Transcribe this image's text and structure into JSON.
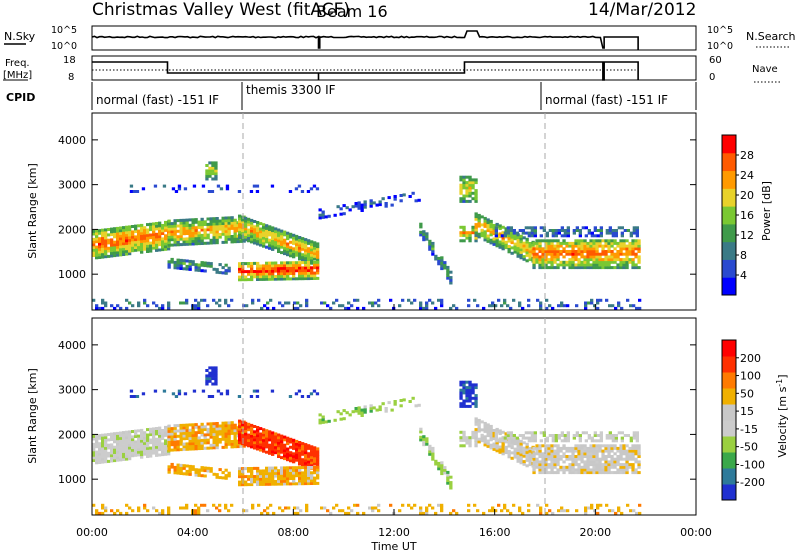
{
  "header": {
    "title": "Christmas Valley West (fitACF)",
    "beam": "Beam 16",
    "date": "14/Mar/2012"
  },
  "panels": {
    "nsky": {
      "label": "N.Sky",
      "ticks": [
        "10^5",
        "10^0"
      ],
      "right_label": "N.Search"
    },
    "freq": {
      "label_line1": "Freq.",
      "label_line2": "[MHz]",
      "ticks": [
        "18",
        "8"
      ],
      "right_ticks": [
        "60",
        "0"
      ],
      "right_label": "Nave"
    },
    "cpid": {
      "label": "CPID",
      "segments": [
        "normal (fast) -151 IF",
        "themis 3300 IF",
        "normal (fast) -151 IF"
      ]
    }
  },
  "colors": {
    "power": [
      "#0000ff",
      "#2a4ad0",
      "#3a7a86",
      "#3f9a4a",
      "#7ac832",
      "#e8d22a",
      "#ff9a00",
      "#ff5a00",
      "#ff0000"
    ],
    "velocity": [
      "#2030d0",
      "#2e7a9a",
      "#3aa84a",
      "#9ad040",
      "#cccccc",
      "#c8c8c8",
      "#f0b000",
      "#ff7a00",
      "#ff3000",
      "#ff0000"
    ]
  },
  "chart_data": [
    {
      "type": "heatmap",
      "name": "Power",
      "ylabel": "Slant Range [km]",
      "yticks": [
        "1000",
        "2000",
        "3000",
        "4000"
      ],
      "ylim": [
        200,
        4600
      ],
      "xlim": [
        0,
        24
      ],
      "colorbar_label": "Power [dB]",
      "colorbar_ticks": [
        "4",
        "8",
        "12",
        "16",
        "20",
        "24",
        "28"
      ],
      "colorbar_range": [
        0,
        32
      ]
    },
    {
      "type": "heatmap",
      "name": "Velocity",
      "ylabel": "Slant Range [km]",
      "yticks": [
        "1000",
        "2000",
        "3000",
        "4000"
      ],
      "ylim": [
        200,
        4600
      ],
      "xlim": [
        0,
        24
      ],
      "xlabel": "Time UT",
      "xticks": [
        "00:00",
        "04:00",
        "08:00",
        "12:00",
        "16:00",
        "20:00",
        "00:00"
      ],
      "colorbar_label": "Velocity [m s^-1]",
      "colorbar_ticks": [
        "200",
        "100",
        "50",
        "15",
        "-15",
        "-50",
        "-100",
        "-200"
      ]
    }
  ]
}
